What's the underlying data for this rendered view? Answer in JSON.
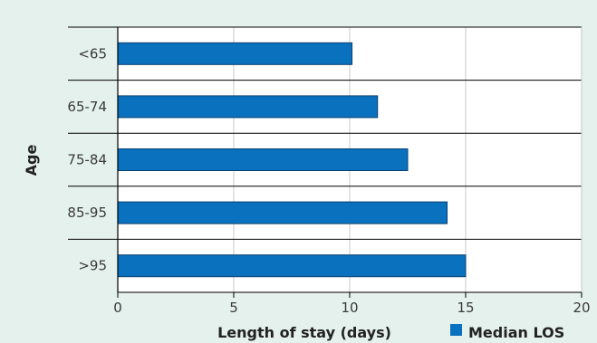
{
  "colors": {
    "panel_background": "#e4f1ec",
    "plot_background": "#ffffff",
    "bar_fill": "#0a71bf",
    "bar_stroke": "#0b3f6e",
    "gridline": "#c8c8c8",
    "separator": "#000000"
  },
  "chart_data": {
    "type": "bar",
    "orientation": "horizontal",
    "categories": [
      "<65",
      "65-74",
      "75-84",
      "85-95",
      ">95"
    ],
    "series": [
      {
        "name": "Median LOS",
        "values": [
          10.1,
          11.2,
          12.5,
          14.2,
          15.0
        ]
      }
    ],
    "xlabel": "Length of stay (days)",
    "ylabel": "Age",
    "xlim": [
      0,
      20
    ],
    "xticks": [
      "0",
      "5",
      "10",
      "15",
      "20"
    ],
    "grid": true,
    "legend_position": "bottom-right"
  }
}
